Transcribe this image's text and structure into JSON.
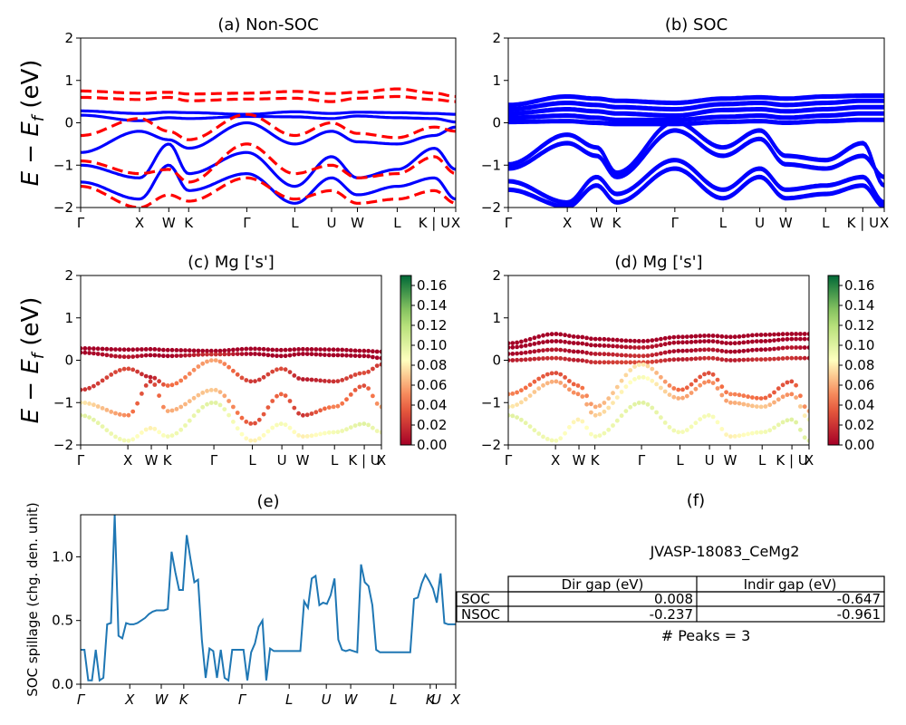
{
  "chart_data": [
    {
      "id": "a",
      "type": "line",
      "title": "(a) Non-SOC",
      "ylabel": "E − E_f (eV)",
      "ylabel_parts": [
        "E − E",
        "f",
        " (eV)"
      ],
      "ylim": [
        -2,
        2
      ],
      "yticks": [
        "2",
        "1",
        "0",
        "−1",
        "−2"
      ],
      "kpath_labels": [
        "Γ",
        "X",
        "W",
        "K",
        "Γ",
        "L",
        "U",
        "W",
        "L",
        "K | U",
        "X"
      ],
      "series": [
        {
          "style": "solid",
          "color": "#0000ff",
          "kind": "spin-up bands",
          "bands": [
            [
              0.28,
              0.22,
              0.25,
              0.24,
              0.2,
              0.26,
              0.22,
              0.25,
              0.24,
              0.22,
              0.2
            ],
            [
              0.18,
              0.05,
              0.12,
              0.1,
              0.15,
              0.14,
              0.1,
              0.16,
              0.12,
              0.1,
              0.02
            ],
            [
              -0.7,
              -0.2,
              -0.4,
              -0.6,
              0.0,
              -0.5,
              -0.2,
              -0.45,
              -0.5,
              -0.3,
              -0.1
            ],
            [
              -1.0,
              -1.3,
              -0.5,
              -1.2,
              -0.7,
              -1.5,
              -0.8,
              -1.3,
              -1.1,
              -0.6,
              -1.1
            ],
            [
              -1.4,
              -1.8,
              -1.0,
              -1.6,
              -1.2,
              -1.9,
              -1.3,
              -1.7,
              -1.5,
              -1.3,
              -1.8
            ]
          ]
        },
        {
          "style": "dashed",
          "color": "#ff0000",
          "kind": "spin-down bands",
          "bands": [
            [
              0.75,
              0.7,
              0.72,
              0.68,
              0.7,
              0.74,
              0.69,
              0.72,
              0.8,
              0.7,
              0.62
            ],
            [
              0.6,
              0.55,
              0.6,
              0.52,
              0.56,
              0.58,
              0.5,
              0.58,
              0.62,
              0.55,
              0.5
            ],
            [
              -0.3,
              0.1,
              -0.2,
              -0.4,
              0.2,
              -0.3,
              0.0,
              -0.25,
              -0.35,
              -0.1,
              -0.2
            ],
            [
              -0.9,
              -1.2,
              -1.1,
              -1.4,
              -0.5,
              -1.2,
              -1.0,
              -1.3,
              -1.2,
              -0.8,
              -1.2
            ],
            [
              -1.5,
              -2.0,
              -1.7,
              -1.85,
              -1.3,
              -1.8,
              -1.6,
              -1.9,
              -1.8,
              -1.6,
              -1.9
            ]
          ]
        }
      ]
    },
    {
      "id": "b",
      "type": "line",
      "title": "(b) SOC",
      "ylim": [
        -2,
        2
      ],
      "yticks": [
        "2",
        "1",
        "0",
        "−1",
        "−2"
      ],
      "kpath_labels": [
        "Γ",
        "X",
        "W",
        "K",
        "Γ",
        "L",
        "U",
        "W",
        "L",
        "K | U",
        "X"
      ],
      "series": [
        {
          "style": "solid",
          "color": "#0000ff",
          "kind": "bands",
          "bands": [
            [
              0.4,
              0.6,
              0.55,
              0.5,
              0.45,
              0.55,
              0.58,
              0.55,
              0.6,
              0.62,
              0.62
            ],
            [
              0.3,
              0.45,
              0.4,
              0.35,
              0.3,
              0.42,
              0.45,
              0.4,
              0.45,
              0.5,
              0.5
            ],
            [
              0.2,
              0.3,
              0.25,
              0.2,
              0.15,
              0.28,
              0.3,
              0.25,
              0.3,
              0.35,
              0.35
            ],
            [
              0.1,
              0.15,
              0.1,
              0.05,
              0.05,
              0.12,
              0.15,
              0.1,
              0.15,
              0.2,
              0.2
            ],
            [
              0.0,
              0.02,
              -0.02,
              -0.05,
              -0.05,
              0.0,
              0.02,
              -0.02,
              0.02,
              0.05,
              0.05
            ],
            [
              -1.0,
              -0.3,
              -0.6,
              -1.2,
              0.0,
              -0.6,
              -0.2,
              -0.8,
              -0.9,
              -0.5,
              -1.5
            ],
            [
              -1.1,
              -0.5,
              -0.8,
              -1.3,
              -0.2,
              -0.8,
              -0.4,
              -1.0,
              -1.1,
              -0.8,
              -1.3
            ],
            [
              -1.4,
              -1.9,
              -1.3,
              -1.7,
              -0.9,
              -1.6,
              -1.1,
              -1.6,
              -1.5,
              -1.3,
              -1.9
            ],
            [
              -1.6,
              -2.0,
              -1.5,
              -1.9,
              -1.1,
              -1.8,
              -1.3,
              -1.8,
              -1.7,
              -1.5,
              -2.0
            ]
          ]
        }
      ]
    },
    {
      "id": "c",
      "type": "scatter",
      "title": "(c)  Mg ['s']",
      "ylim": [
        -2,
        2
      ],
      "yticks": [
        "2",
        "1",
        "0",
        "−1",
        "−2"
      ],
      "kpath_labels": [
        "Γ",
        "X",
        "W",
        "K",
        "Γ",
        "L",
        "U",
        "W",
        "L",
        "K | U",
        "X"
      ],
      "colorbar": {
        "cmap": "RdYlGn",
        "min": 0.0,
        "max": 0.17,
        "ticks": [
          "0.16",
          "0.14",
          "0.12",
          "0.10",
          "0.08",
          "0.06",
          "0.04",
          "0.02",
          "0.00"
        ]
      },
      "bands": [
        [
          0.28,
          0.25,
          0.26,
          0.24,
          0.22,
          0.27,
          0.24,
          0.26,
          0.25,
          0.22,
          0.2
        ],
        [
          0.18,
          0.08,
          0.12,
          0.1,
          0.14,
          0.15,
          0.1,
          0.15,
          0.12,
          0.1,
          0.05
        ],
        [
          -0.7,
          -0.2,
          -0.4,
          -0.6,
          0.0,
          -0.5,
          -0.2,
          -0.45,
          -0.5,
          -0.3,
          -0.1
        ],
        [
          -1.0,
          -1.3,
          -0.5,
          -1.2,
          -0.7,
          -1.5,
          -0.8,
          -1.3,
          -1.1,
          -0.6,
          -1.1
        ],
        [
          -1.3,
          -1.9,
          -1.6,
          -1.8,
          -1.0,
          -1.9,
          -1.5,
          -1.8,
          -1.7,
          -1.5,
          -1.7
        ]
      ],
      "weights": [
        [
          0.0,
          0.0,
          0.0,
          0.0,
          0.0,
          0.0,
          0.0,
          0.0,
          0.0,
          0.0,
          0.0
        ],
        [
          0.0,
          0.01,
          0.0,
          0.0,
          0.02,
          0.0,
          0.0,
          0.0,
          0.0,
          0.0,
          0.0
        ],
        [
          0.02,
          0.03,
          0.01,
          0.04,
          0.06,
          0.02,
          0.03,
          0.01,
          0.02,
          0.03,
          0.02
        ],
        [
          0.08,
          0.05,
          0.02,
          0.06,
          0.07,
          0.03,
          0.04,
          0.02,
          0.05,
          0.03,
          0.06
        ],
        [
          0.1,
          0.09,
          0.08,
          0.09,
          0.1,
          0.08,
          0.09,
          0.08,
          0.09,
          0.1,
          0.09
        ]
      ]
    },
    {
      "id": "d",
      "type": "scatter",
      "title": "(d) Mg ['s']",
      "ylim": [
        -2,
        2
      ],
      "yticks": [
        "2",
        "1",
        "0",
        "−1",
        "−2"
      ],
      "kpath_labels": [
        "Γ",
        "X",
        "W",
        "K",
        "Γ",
        "L",
        "U",
        "W",
        "L",
        "K | U",
        "X"
      ],
      "colorbar": {
        "cmap": "RdYlGn",
        "min": 0.0,
        "max": 0.17,
        "ticks": [
          "0.16",
          "0.14",
          "0.12",
          "0.10",
          "0.08",
          "0.06",
          "0.04",
          "0.02",
          "0.00"
        ]
      },
      "bands": [
        [
          0.4,
          0.62,
          0.55,
          0.5,
          0.45,
          0.55,
          0.58,
          0.55,
          0.6,
          0.62,
          0.62
        ],
        [
          0.3,
          0.45,
          0.4,
          0.35,
          0.3,
          0.42,
          0.45,
          0.4,
          0.45,
          0.5,
          0.5
        ],
        [
          0.15,
          0.25,
          0.2,
          0.15,
          0.1,
          0.22,
          0.25,
          0.2,
          0.25,
          0.3,
          0.3
        ],
        [
          0.0,
          0.05,
          0.0,
          -0.05,
          -0.05,
          0.02,
          0.05,
          0.0,
          0.02,
          0.05,
          0.05
        ],
        [
          -0.8,
          -0.3,
          -0.6,
          -1.1,
          -0.1,
          -0.7,
          -0.3,
          -0.8,
          -0.9,
          -0.5,
          -1.2
        ],
        [
          -1.1,
          -0.5,
          -0.8,
          -1.3,
          -0.4,
          -0.9,
          -0.5,
          -1.0,
          -1.1,
          -0.8,
          -1.4
        ],
        [
          -1.3,
          -1.9,
          -1.4,
          -1.8,
          -1.0,
          -1.7,
          -1.3,
          -1.8,
          -1.7,
          -1.4,
          -1.9
        ]
      ],
      "weights": [
        [
          0.0,
          0.0,
          0.0,
          0.0,
          0.0,
          0.0,
          0.0,
          0.0,
          0.0,
          0.0,
          0.0
        ],
        [
          0.0,
          0.0,
          0.0,
          0.0,
          0.01,
          0.0,
          0.0,
          0.0,
          0.0,
          0.0,
          0.0
        ],
        [
          0.0,
          0.01,
          0.0,
          0.01,
          0.02,
          0.0,
          0.01,
          0.0,
          0.0,
          0.01,
          0.0
        ],
        [
          0.01,
          0.02,
          0.01,
          0.02,
          0.03,
          0.01,
          0.02,
          0.01,
          0.02,
          0.02,
          0.01
        ],
        [
          0.05,
          0.03,
          0.04,
          0.06,
          0.08,
          0.04,
          0.03,
          0.05,
          0.04,
          0.03,
          0.06
        ],
        [
          0.08,
          0.06,
          0.05,
          0.07,
          0.09,
          0.06,
          0.05,
          0.06,
          0.07,
          0.05,
          0.09
        ],
        [
          0.1,
          0.09,
          0.08,
          0.09,
          0.1,
          0.09,
          0.09,
          0.08,
          0.09,
          0.1,
          0.1
        ]
      ]
    },
    {
      "id": "e",
      "type": "line",
      "title": "(e)",
      "ylabel": "SOC spillage (chg. den. unit)",
      "ylim": [
        0,
        1.33
      ],
      "yticks": [
        "0.0",
        "0.5",
        "1.0"
      ],
      "kpath_labels": [
        "Γ",
        "X",
        "W",
        "K",
        "Γ",
        "L",
        "U",
        "W",
        "L",
        "K",
        "U",
        "X"
      ],
      "color": "#1f77b4",
      "x": [
        0,
        1,
        2,
        3,
        4,
        5,
        6,
        7,
        8,
        9,
        10,
        11,
        12,
        13,
        14,
        15,
        16,
        17,
        18,
        19,
        20,
        21,
        22,
        23,
        24,
        25,
        26,
        27,
        28,
        29,
        30,
        31,
        32,
        33,
        34,
        35,
        36,
        37,
        38,
        39,
        40,
        41,
        42,
        43,
        44,
        45,
        46,
        47,
        48,
        49,
        50,
        51,
        52,
        53,
        54,
        55,
        56,
        57,
        58,
        59,
        60,
        61,
        62,
        63,
        64,
        65,
        66,
        67,
        68,
        69,
        70,
        71,
        72,
        73,
        74,
        75,
        76,
        77,
        78,
        79,
        80,
        81,
        82,
        83,
        84,
        85,
        86,
        87,
        88,
        89,
        90,
        91,
        92,
        93,
        94,
        95,
        96,
        97,
        98,
        99
      ],
      "y": [
        0.27,
        0.27,
        0.03,
        0.03,
        0.27,
        0.03,
        0.05,
        0.47,
        0.48,
        1.33,
        0.38,
        0.36,
        0.48,
        0.47,
        0.47,
        0.48,
        0.5,
        0.52,
        0.55,
        0.57,
        0.58,
        0.58,
        0.58,
        0.59,
        1.04,
        0.88,
        0.74,
        0.74,
        1.17,
        0.98,
        0.8,
        0.82,
        0.35,
        0.05,
        0.28,
        0.26,
        0.05,
        0.27,
        0.05,
        0.03,
        0.27,
        0.27,
        0.27,
        0.27,
        0.03,
        0.25,
        0.32,
        0.45,
        0.5,
        0.03,
        0.28,
        0.26,
        0.26,
        0.26,
        0.26,
        0.26,
        0.26,
        0.26,
        0.26,
        0.65,
        0.6,
        0.83,
        0.85,
        0.62,
        0.64,
        0.63,
        0.7,
        0.83,
        0.35,
        0.27,
        0.26,
        0.27,
        0.26,
        0.25,
        0.94,
        0.8,
        0.77,
        0.62,
        0.27,
        0.25,
        0.25,
        0.25,
        0.25,
        0.25,
        0.25,
        0.25,
        0.25,
        0.25,
        0.67,
        0.68,
        0.79,
        0.86,
        0.81,
        0.75,
        0.64,
        0.87,
        0.48,
        0.47,
        0.47,
        0.47
      ]
    }
  ],
  "panel_f": {
    "title": "(f)",
    "material_id": "JVASP-18083_CeMg2",
    "table": {
      "headers": [
        "",
        "Dir gap (eV)",
        "Indir gap (eV)"
      ],
      "rows": [
        [
          "SOC",
          "0.008",
          "-0.647"
        ],
        [
          "NSOC",
          "-0.237",
          "-0.961"
        ]
      ]
    },
    "peaks_text": "# Peaks = 3"
  }
}
